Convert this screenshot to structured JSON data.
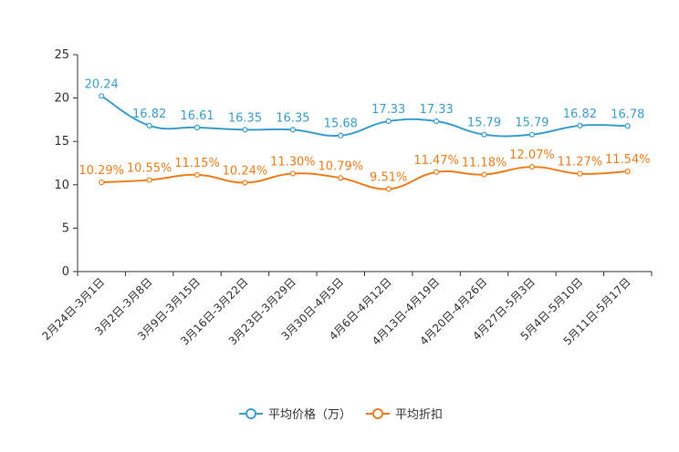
{
  "chart_data": {
    "type": "line",
    "categories": [
      "2月24日-3月1日",
      "3月2日-3月8日",
      "3月9日-3月15日",
      "3月16日-3月22日",
      "3月23日-3月29日",
      "3月30日-4月5日",
      "4月6日-4月12日",
      "4月13日-4月19日",
      "4月20日-4月26日",
      "4月27日-5月3日",
      "5月4日-5月10日",
      "5月11日-5月17日"
    ],
    "ylim": [
      0,
      25
    ],
    "yticks": [
      0,
      5,
      10,
      15,
      20,
      25
    ],
    "series": [
      {
        "name": "平均价格（万）",
        "color": "#3a9fcf",
        "values": [
          20.24,
          16.82,
          16.61,
          16.35,
          16.35,
          15.68,
          17.33,
          17.33,
          15.79,
          15.79,
          16.82,
          16.78
        ],
        "labels": [
          "20.24",
          "16.82",
          "16.61",
          "16.35",
          "16.35",
          "15.68",
          "17.33",
          "17.33",
          "15.79",
          "15.79",
          "16.82",
          "16.78"
        ]
      },
      {
        "name": "平均折扣",
        "color": "#f07d1a",
        "values": [
          10.29,
          10.55,
          11.15,
          10.24,
          11.3,
          10.79,
          9.51,
          11.47,
          11.18,
          12.07,
          11.27,
          11.54
        ],
        "labels": [
          "10.29%",
          "10.55%",
          "11.15%",
          "10.24%",
          "11.30%",
          "10.79%",
          "9.51%",
          "11.47%",
          "11.18%",
          "12.07%",
          "11.27%",
          "11.54%"
        ]
      }
    ],
    "legend_position": "bottom"
  },
  "legend": {
    "items": [
      "平均价格（万）",
      "平均折扣"
    ]
  }
}
